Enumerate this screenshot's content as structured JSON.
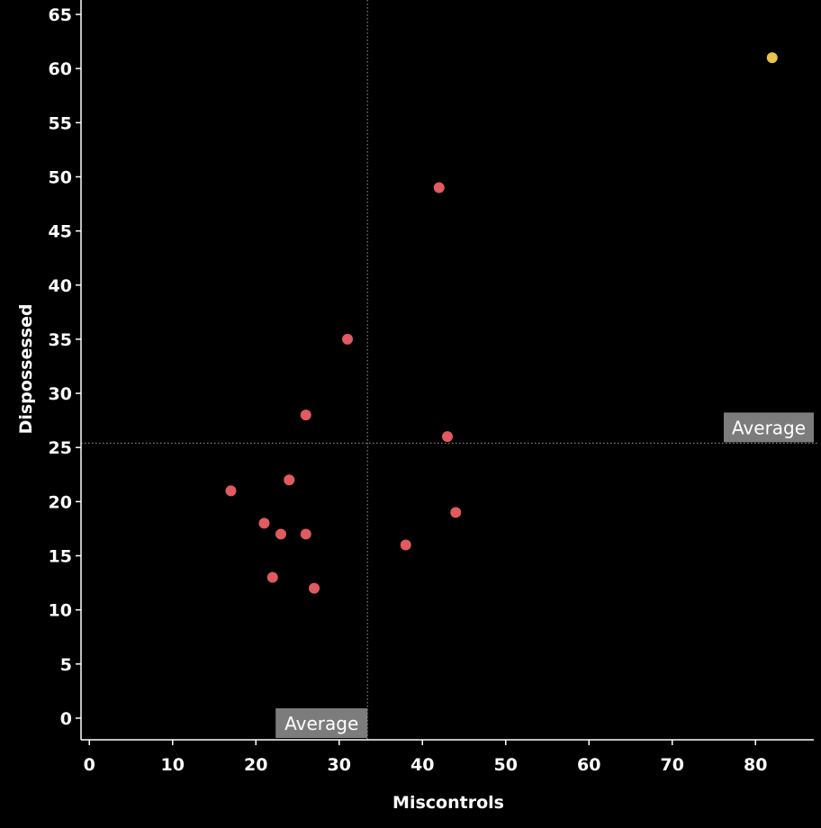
{
  "chart_data": {
    "type": "scatter",
    "xlabel": "Miscontrols",
    "ylabel": "Dispossessed",
    "xlim": [
      -1,
      87
    ],
    "ylim": [
      -2,
      66
    ],
    "x_ticks": [
      0,
      10,
      20,
      30,
      40,
      50,
      60,
      70,
      80
    ],
    "y_ticks": [
      0,
      5,
      10,
      15,
      20,
      25,
      30,
      35,
      40,
      45,
      50,
      55,
      60,
      65
    ],
    "grid": false,
    "background": "#000000",
    "reference_lines": [
      {
        "axis": "x",
        "value": 33.4,
        "label": "Average"
      },
      {
        "axis": "y",
        "value": 25.4,
        "label": "Average"
      }
    ],
    "points": [
      {
        "x": 82,
        "y": 61,
        "color": "#e8c24a"
      },
      {
        "x": 42,
        "y": 49,
        "color": "#e05a5f"
      },
      {
        "x": 31,
        "y": 35,
        "color": "#e05a5f"
      },
      {
        "x": 26,
        "y": 28,
        "color": "#e05a5f"
      },
      {
        "x": 43,
        "y": 26,
        "color": "#e05a5f"
      },
      {
        "x": 24,
        "y": 22,
        "color": "#e05a5f"
      },
      {
        "x": 17,
        "y": 21,
        "color": "#e05a5f"
      },
      {
        "x": 44,
        "y": 19,
        "color": "#e05a5f"
      },
      {
        "x": 21,
        "y": 18,
        "color": "#e05a5f"
      },
      {
        "x": 23,
        "y": 17,
        "color": "#e05a5f"
      },
      {
        "x": 26,
        "y": 17,
        "color": "#e05a5f"
      },
      {
        "x": 38,
        "y": 16,
        "color": "#e05a5f"
      },
      {
        "x": 22,
        "y": 13,
        "color": "#e05a5f"
      },
      {
        "x": 27,
        "y": 12,
        "color": "#e05a5f"
      }
    ]
  }
}
